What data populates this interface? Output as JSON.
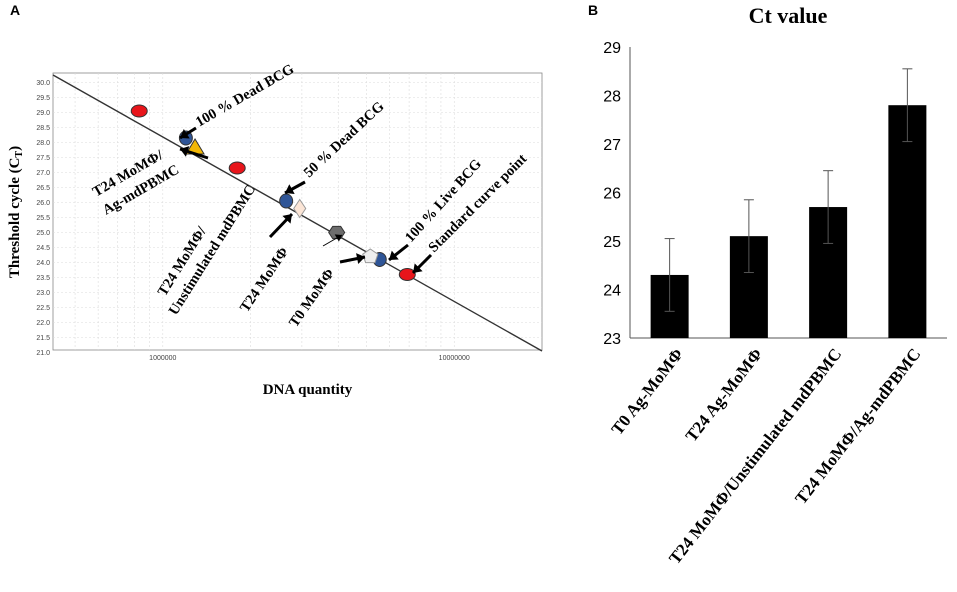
{
  "panel_a_label": "A",
  "panel_b_label": "B",
  "chart_data": [
    {
      "type": "scatter",
      "panel": "A",
      "title": "",
      "xlabel": "DNA quantity",
      "ylabel": "Threshold cycle (C",
      "ylabel_sub": "T",
      "ylabel_close": ")",
      "x_scale": "log",
      "xlim": [
        420000,
        20000000
      ],
      "ylim": [
        21.0,
        30.5
      ],
      "x_ticks": [
        {
          "value": 1000000,
          "label": "1000000"
        },
        {
          "value": 10000000,
          "label": "10000000"
        }
      ],
      "y_ticks": [
        {
          "value": 21.0,
          "label": "21.0"
        },
        {
          "value": 21.5,
          "label": "21.5"
        },
        {
          "value": 22.0,
          "label": "22.0"
        },
        {
          "value": 22.5,
          "label": "22.5"
        },
        {
          "value": 23.0,
          "label": "23.0"
        },
        {
          "value": 23.5,
          "label": "23.5"
        },
        {
          "value": 24.0,
          "label": "24.0"
        },
        {
          "value": 24.5,
          "label": "24.5"
        },
        {
          "value": 25.0,
          "label": "25.0"
        },
        {
          "value": 25.5,
          "label": "25.5"
        },
        {
          "value": 26.0,
          "label": "26.0"
        },
        {
          "value": 26.5,
          "label": "26.5"
        },
        {
          "value": 27.0,
          "label": "27.0"
        },
        {
          "value": 27.5,
          "label": "27.5"
        },
        {
          "value": 28.0,
          "label": "28.0"
        },
        {
          "value": 28.5,
          "label": "28.5"
        },
        {
          "value": 29.0,
          "label": "29.0"
        },
        {
          "value": 29.5,
          "label": "29.5"
        },
        {
          "value": 30.0,
          "label": "30.0"
        }
      ],
      "standard_curve": {
        "x": [
          420000,
          20000000
        ],
        "y": [
          30.25,
          21.05
        ]
      },
      "points": [
        {
          "name": "std-1",
          "series": "Standard curve point",
          "shape": "ellipse",
          "color": "#e8151b",
          "x": 830000,
          "y": 29.05
        },
        {
          "name": "std-2",
          "series": "Standard curve point",
          "shape": "ellipse",
          "color": "#e8151b",
          "x": 1800000,
          "y": 27.15
        },
        {
          "name": "std-3",
          "series": "Standard curve point",
          "shape": "ellipse",
          "color": "#e8151b",
          "x": 6900000,
          "y": 23.6
        },
        {
          "name": "dead-100",
          "series": "100 % Dead BCG",
          "shape": "circle",
          "color": "#2f5597",
          "x": 1200000,
          "y": 28.15
        },
        {
          "name": "dead-50",
          "series": "50 % Dead BCG",
          "shape": "circle",
          "color": "#2f5597",
          "x": 2650000,
          "y": 26.05
        },
        {
          "name": "live-100",
          "series": "100 % Live BCG",
          "shape": "circle",
          "color": "#2f5597",
          "x": 5550000,
          "y": 24.1
        },
        {
          "name": "t24-ag",
          "series": "T24 MoMΦ/Ag-mdPBMC",
          "shape": "triangle",
          "color": "#f2b705",
          "x": 1290000,
          "y": 27.85
        },
        {
          "name": "t24-unstim",
          "series": "T24 MoMΦ/Unstimulated mdPBMC",
          "shape": "diamond",
          "color": "#fbe5d6",
          "x": 2950000,
          "y": 25.8
        },
        {
          "name": "t24",
          "series": "T24 MoMΦ",
          "shape": "hexagon",
          "color": "#6d6d6d",
          "x": 3950000,
          "y": 25.0
        },
        {
          "name": "t0",
          "series": "T0 MoMΦ",
          "shape": "pentagon",
          "color": "#eeeeee",
          "x": 5150000,
          "y": 24.2
        }
      ],
      "annotations": [
        {
          "name": "ann-dead-100",
          "text": "100 % Dead BCG"
        },
        {
          "name": "ann-dead-50",
          "text": "50 % Dead BCG"
        },
        {
          "name": "ann-live-100",
          "text": "100 % Live BCG"
        },
        {
          "name": "ann-std",
          "text": "Standard curve point"
        },
        {
          "name": "ann-t24-ag-1",
          "text": "T24 MoMΦ/"
        },
        {
          "name": "ann-t24-ag-2",
          "text": "Ag-mdPBMC"
        },
        {
          "name": "ann-t24-unstim-1",
          "text": "T24 MoMΦ/"
        },
        {
          "name": "ann-t24-unstim-2",
          "text": "Unstimulated mdPBMC"
        },
        {
          "name": "ann-t24",
          "text": "T24 MoMΦ"
        },
        {
          "name": "ann-t0",
          "text": "T0 MoMΦ"
        }
      ]
    },
    {
      "type": "bar",
      "panel": "B",
      "title": "Ct value",
      "xlabel": "",
      "ylabel": "",
      "ylim": [
        23,
        29
      ],
      "y_ticks": [
        23,
        24,
        25,
        26,
        27,
        28,
        29
      ],
      "categories": [
        "T0 Ag-MoMΦ",
        "T24 Ag-MoMΦ",
        "T24 MoMΦ/Unstimulated mdPBMC",
        "T24 MoMΦ/Ag-mdPBMC"
      ],
      "values": [
        24.3,
        25.1,
        25.7,
        27.8
      ],
      "errors": [
        0.75,
        0.75,
        0.75,
        0.75
      ],
      "bar_color": "#000000"
    }
  ]
}
